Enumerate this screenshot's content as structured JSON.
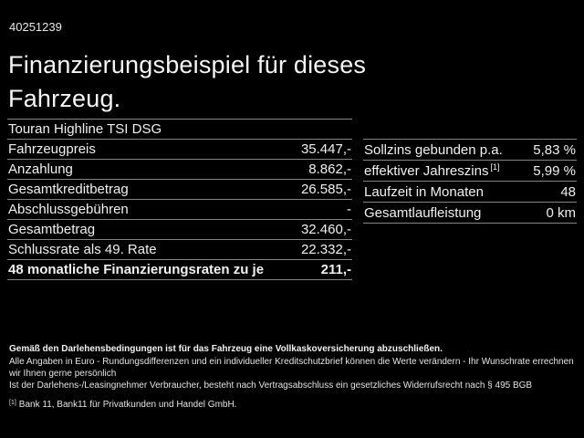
{
  "page": {
    "vehicle_id": "40251239",
    "title": "Finanzierungsbeispiel für dieses Fahrzeug."
  },
  "left_table": {
    "header": "Touran Highline TSI DSG",
    "rows": [
      {
        "label": "Fahrzeugpreis",
        "value": "35.447,-"
      },
      {
        "label": "Anzahlung",
        "value": "8.862,-"
      },
      {
        "label": "Gesamtkreditbetrag",
        "value": "26.585,-"
      },
      {
        "label": "Abschlussgebühren",
        "value": "-"
      },
      {
        "label": "Gesamtbetrag",
        "value": "32.460,-"
      },
      {
        "label": "Schlussrate als 49. Rate",
        "value": "22.332,-"
      },
      {
        "label": "48 monatliche Finanzierungsraten zu je",
        "value": "211,-"
      }
    ]
  },
  "right_table": {
    "rows": [
      {
        "label": "Sollzins gebunden p.a.",
        "sup": "",
        "value": "5,83 %"
      },
      {
        "label": "effektiver Jahreszins",
        "sup": "[1]",
        "value": "5,99 %"
      },
      {
        "label": "Laufzeit in Monaten",
        "sup": "",
        "value": "48"
      },
      {
        "label": "Gesamtlaufleistung",
        "sup": "",
        "value": "0 km"
      }
    ]
  },
  "footer": {
    "bold_line": "Gemäß den Darlehensbedingungen ist für das Fahrzeug eine Vollkaskoversicherung abzuschließen.",
    "line2": "Alle Angaben in Euro - Rundungsdifferenzen und ein individueller Kreditschutzbrief können die Werte verändern - Ihr Wunschrate errechnen wir Ihnen gerne persönlich",
    "line3": "Ist der Darlehens-/Leasingnehmer Verbraucher, besteht nach Vertragsabschluss ein gesetzliches Widerrufsrecht nach § 495 BGB",
    "footnote_marker": "[1]",
    "footnote_text": "Bank 11, Bank11 für Privatkunden und Handel GmbH."
  },
  "colors": {
    "background": "#000000",
    "text": "#f0f0f0",
    "divider": "#848484"
  }
}
